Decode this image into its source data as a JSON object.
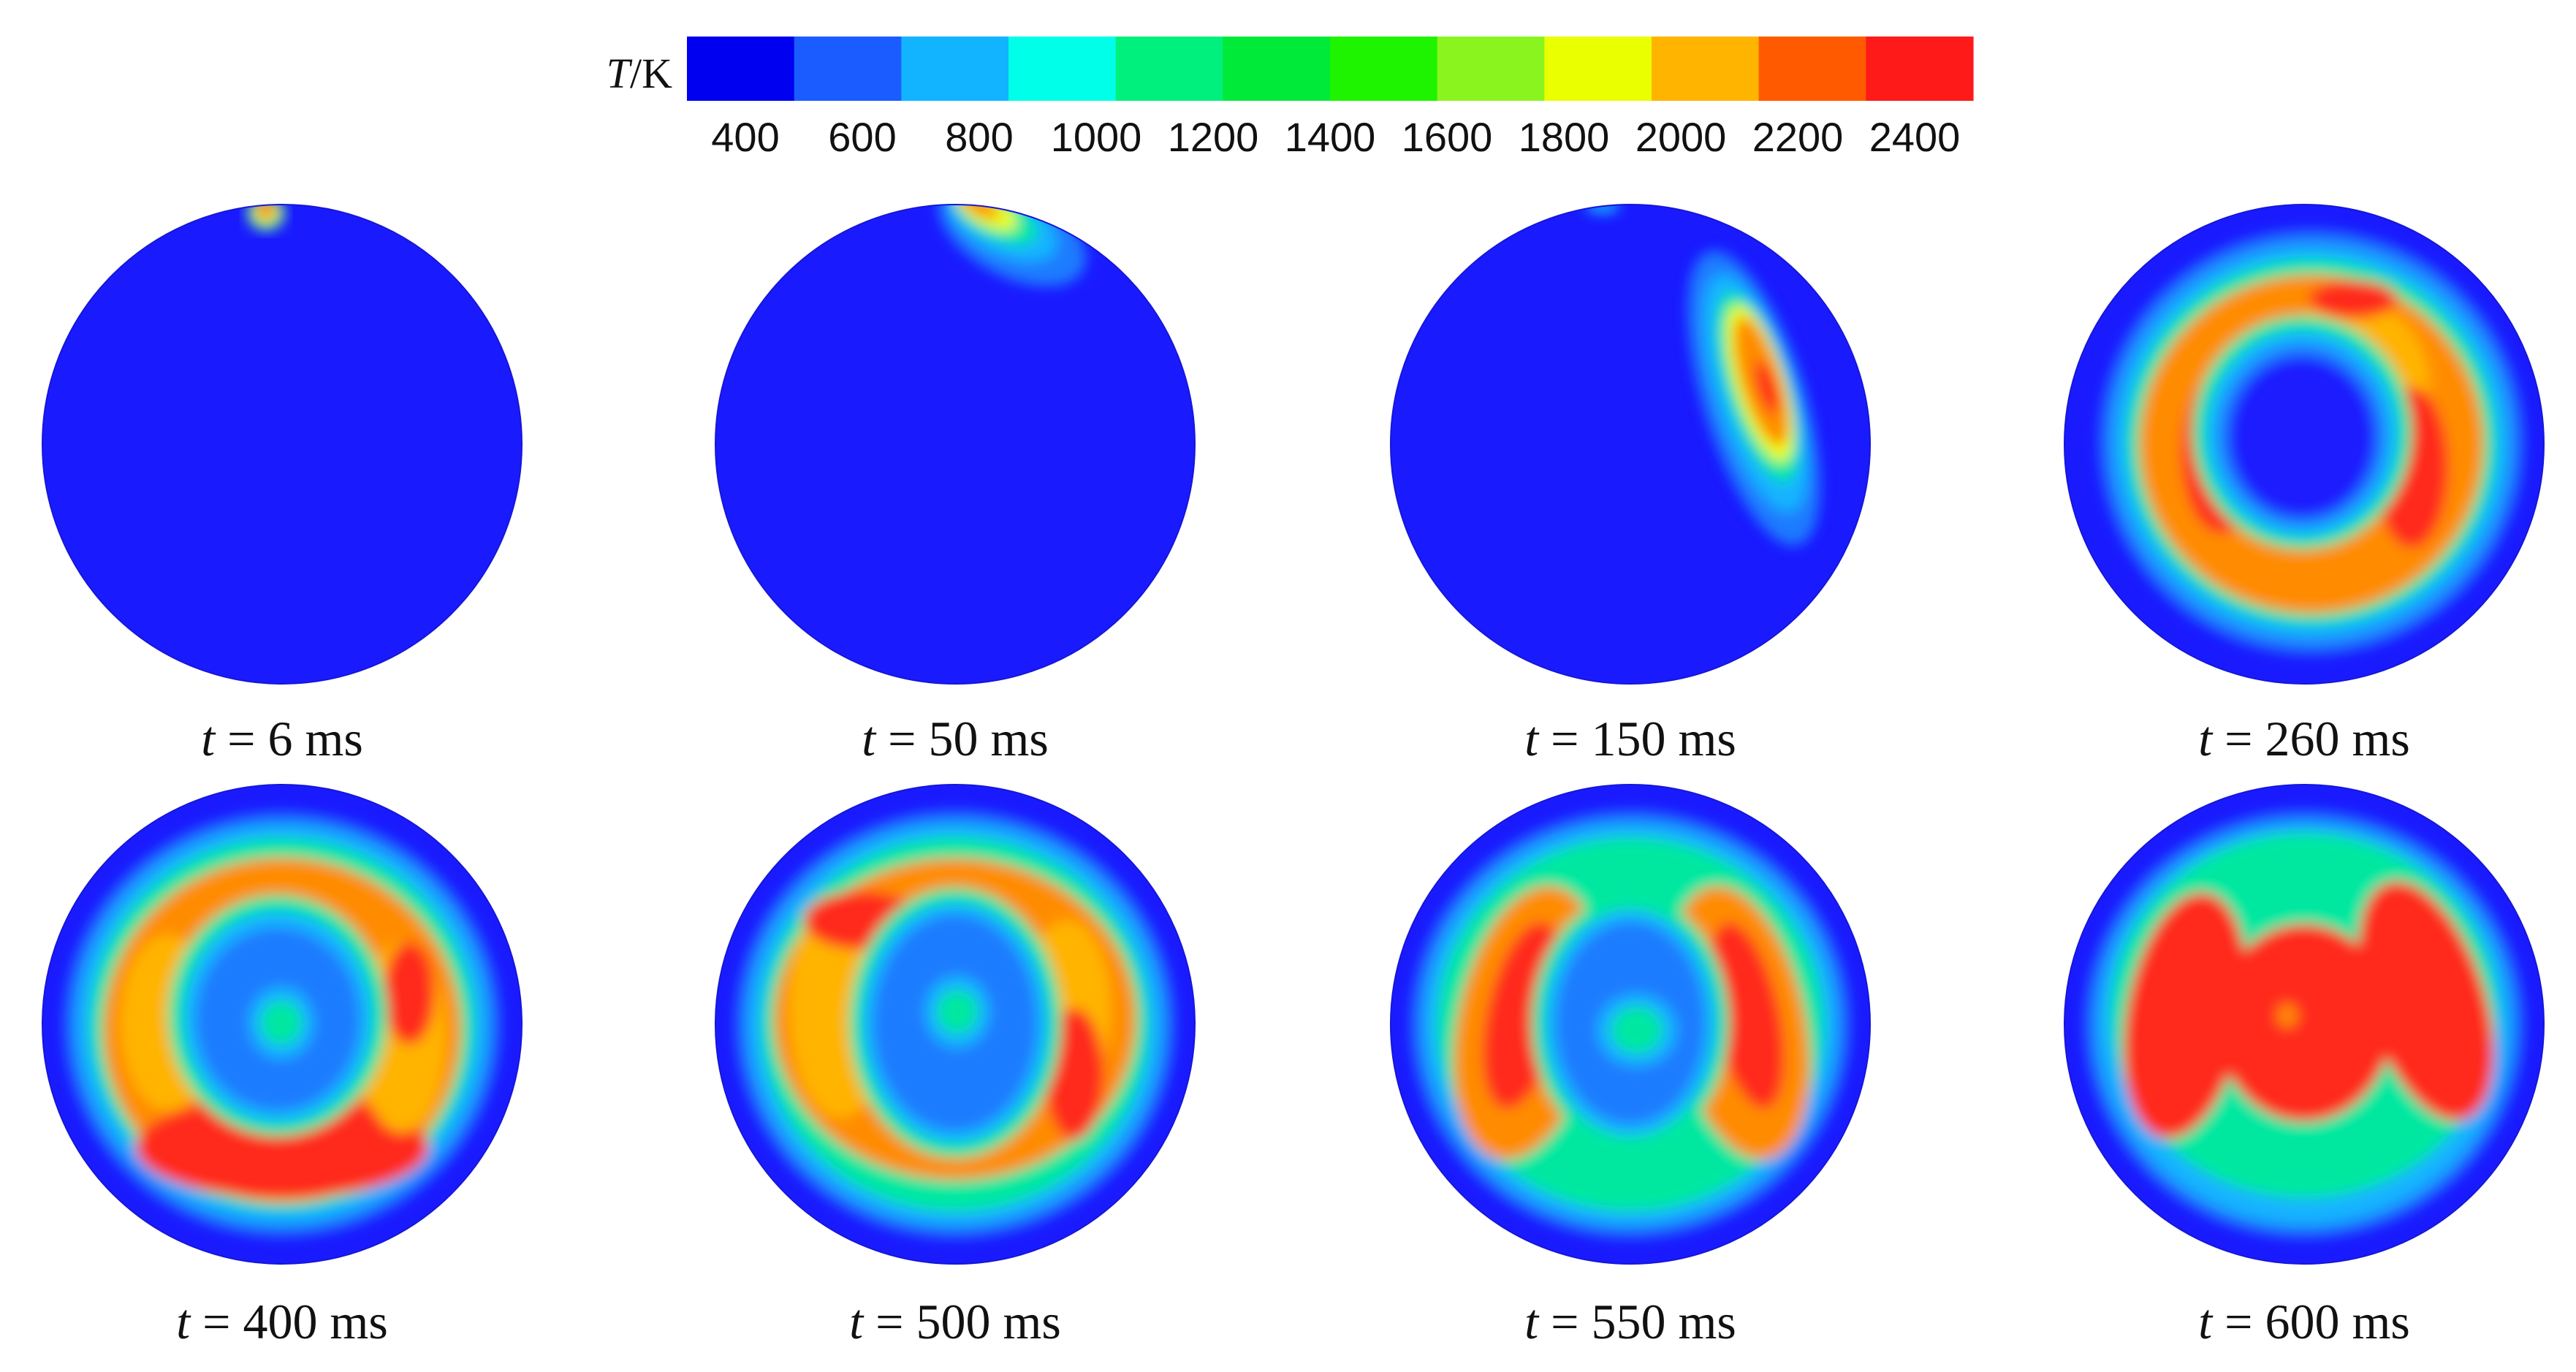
{
  "figure": {
    "colorbar": {
      "title_italic": "T",
      "title_rest": "/K",
      "tick_labels": [
        "400",
        "600",
        "800",
        "1000",
        "1200",
        "1400",
        "1600",
        "1800",
        "2000",
        "2200",
        "2400"
      ],
      "colors": [
        "#0000f0",
        "#1a5cff",
        "#12b4ff",
        "#00ffe8",
        "#00f07d",
        "#00ea3a",
        "#1ef400",
        "#8af41e",
        "#eaff00",
        "#ffb400",
        "#ff5a00",
        "#ff1a1a"
      ]
    },
    "background_color": "#1a1aff",
    "panels": [
      {
        "time": "6 ms"
      },
      {
        "time": "50 ms"
      },
      {
        "time": "150 ms"
      },
      {
        "time": "260 ms"
      },
      {
        "time": "400 ms"
      },
      {
        "time": "500 ms"
      },
      {
        "time": "550 ms"
      },
      {
        "time": "600 ms"
      }
    ]
  }
}
